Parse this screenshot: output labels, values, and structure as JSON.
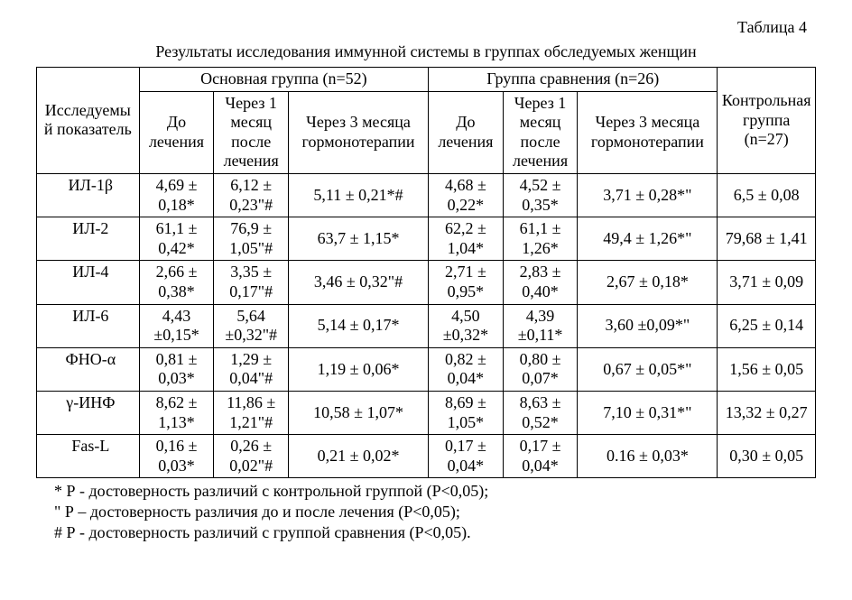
{
  "table_label": "Таблица 4",
  "caption": "Результаты исследования иммунной системы в группах обследуемых женщин",
  "headers": {
    "indicator": "Исследуемый показатель",
    "main_group": "Основная группа\n(n=52)",
    "comp_group": "Группа сравнения\n(n=26)",
    "control_group": "Контрольная группа\n(n=27)",
    "before": "До лечения",
    "after1": "Через 1 месяц после лечения",
    "after3": "Через 3 месяца гормонотерапии"
  },
  "rows": [
    {
      "name": "ИЛ-1β",
      "m_before": "4,69 ± 0,18*",
      "m_after1": "6,12 ± 0,23\"#",
      "m_after3": "5,11 ± 0,21*#",
      "c_before": "4,68 ± 0,22*",
      "c_after1": "4,52 ± 0,35*",
      "c_after3": "3,71 ± 0,28*\"",
      "control": "6,5 ± 0,08"
    },
    {
      "name": "ИЛ-2",
      "m_before": "61,1 ± 0,42*",
      "m_after1": "76,9 ± 1,05\"#",
      "m_after3": "63,7 ± 1,15*",
      "c_before": "62,2 ± 1,04*",
      "c_after1": "61,1 ± 1,26*",
      "c_after3": "49,4 ± 1,26*\"",
      "control": "79,68 ± 1,41"
    },
    {
      "name": "ИЛ-4",
      "m_before": "2,66 ± 0,38*",
      "m_after1": "3,35 ± 0,17\"#",
      "m_after3": "3,46 ± 0,32\"#",
      "c_before": "2,71 ± 0,95*",
      "c_after1": "2,83 ± 0,40*",
      "c_after3": "2,67 ± 0,18*",
      "control": "3,71 ± 0,09"
    },
    {
      "name": "ИЛ-6",
      "m_before": "4,43 ±0,15*",
      "m_after1": "5,64 ±0,32\"#",
      "m_after3": "5,14 ± 0,17*",
      "c_before": "4,50 ±0,32*",
      "c_after1": "4,39 ±0,11*",
      "c_after3": "3,60 ±0,09*\"",
      "control": "6,25 ± 0,14"
    },
    {
      "name": "ФНО-α",
      "m_before": "0,81 ± 0,03*",
      "m_after1": "1,29 ± 0,04\"#",
      "m_after3": "1,19 ± 0,06*",
      "c_before": "0,82 ± 0,04*",
      "c_after1": "0,80 ± 0,07*",
      "c_after3": "0,67 ± 0,05*\"",
      "control": "1,56 ± 0,05"
    },
    {
      "name": "γ-ИНФ",
      "m_before": "8,62 ± 1,13*",
      "m_after1": "11,86 ± 1,21\"#",
      "m_after3": "10,58 ± 1,07*",
      "c_before": "8,69 ± 1,05*",
      "c_after1": "8,63 ± 0,52*",
      "c_after3": "7,10 ± 0,31*\"",
      "control": "13,32 ± 0,27"
    },
    {
      "name": "Fas-L",
      "m_before": "0,16 ± 0,03*",
      "m_after1": "0,26 ± 0,02\"#",
      "m_after3": "0,21 ± 0,02*",
      "c_before": "0,17 ± 0,04*",
      "c_after1": "0,17 ± 0,04*",
      "c_after3": "0.16 ± 0,03*",
      "control": "0,30 ± 0,05"
    }
  ],
  "footnotes": [
    "* Р - достоверность различий с контрольной группой (Р<0,05);",
    "\" Р – достоверность различия до и после лечения (Р<0,05);",
    "# Р - достоверность различий с группой сравнения (Р<0,05)."
  ],
  "style": {
    "font_family": "Times New Roman",
    "base_font_size_pt": 13,
    "border_color": "#000000",
    "background_color": "#ffffff",
    "text_color": "#000000"
  }
}
